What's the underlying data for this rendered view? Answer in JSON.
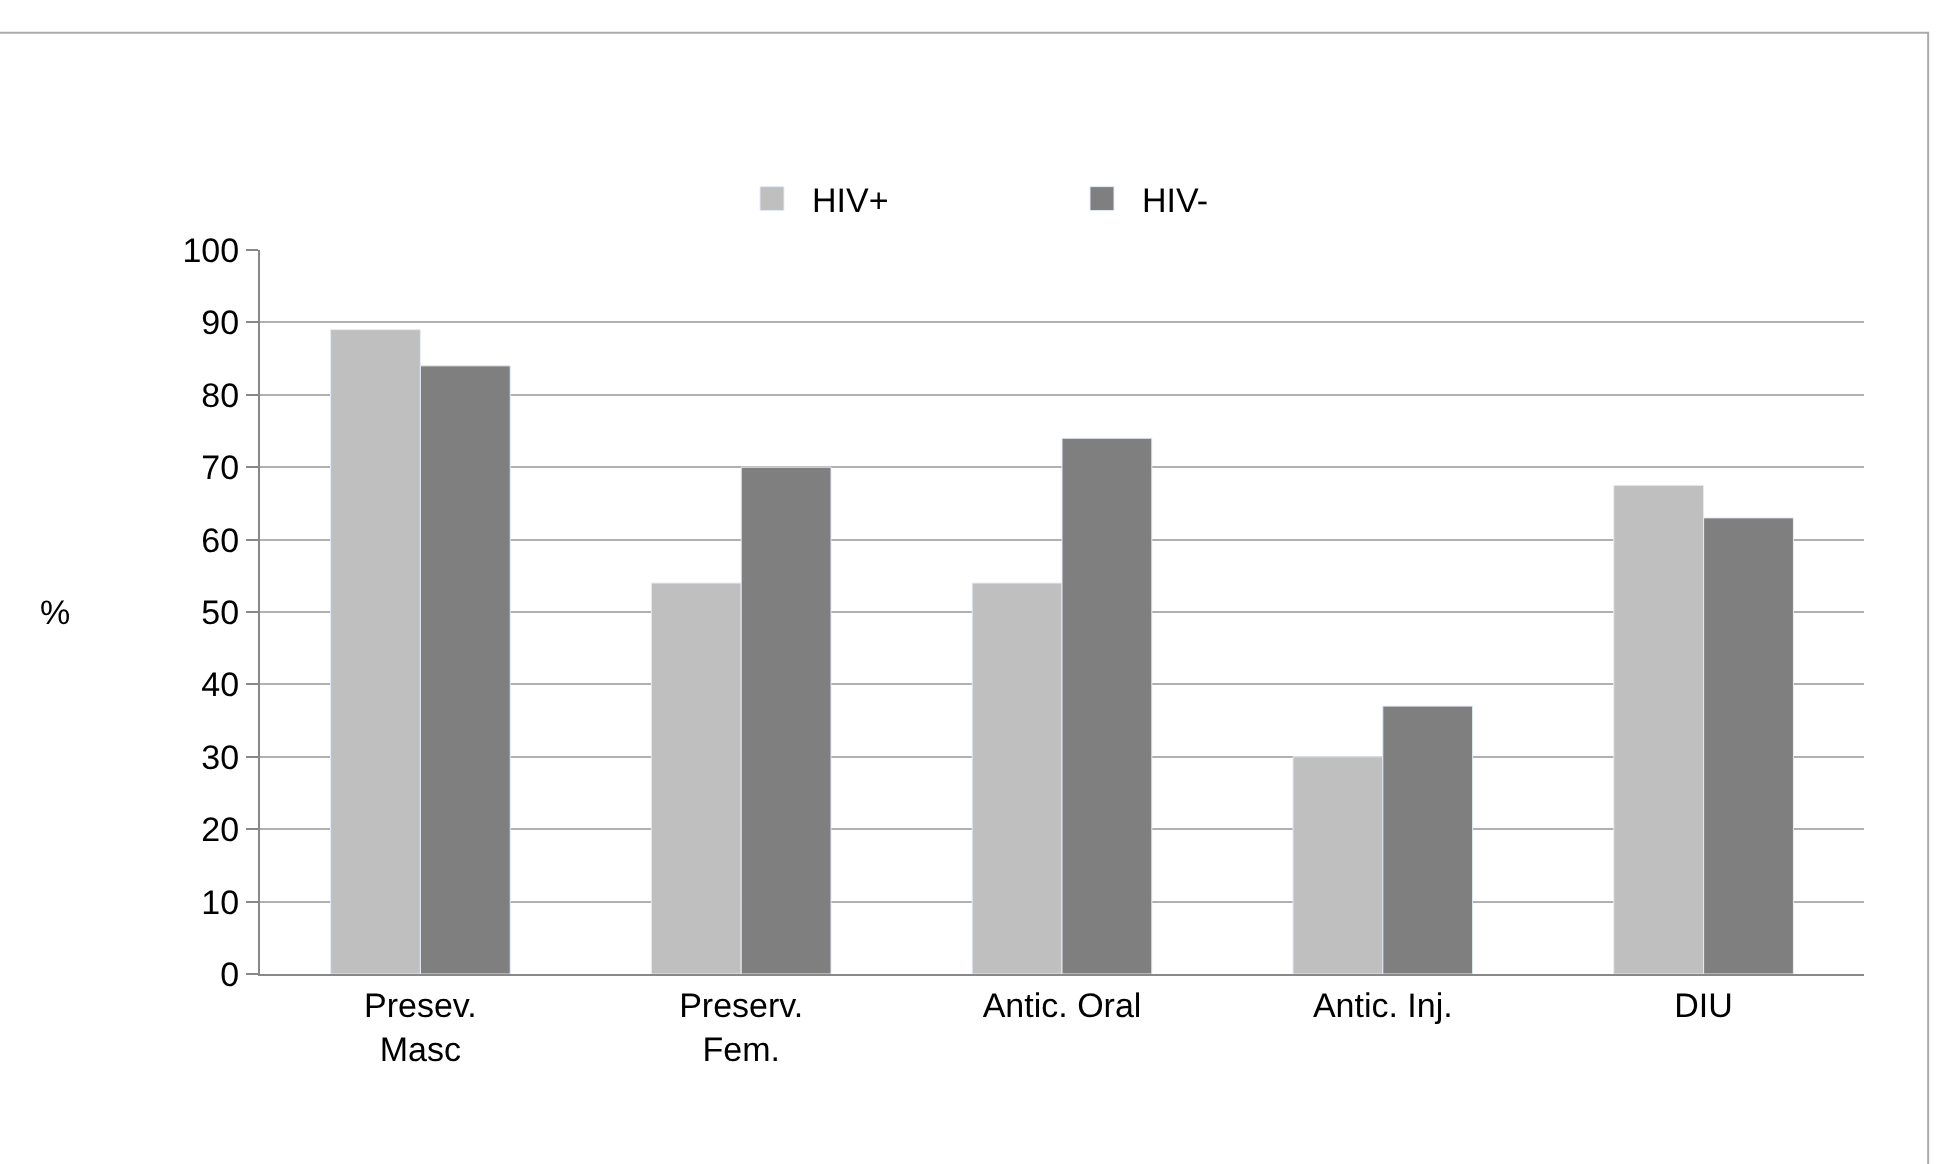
{
  "chart_data": {
    "type": "bar",
    "ylabel": "%",
    "categories": [
      "Presev.\nMasc",
      "Preserv.\nFem.",
      "Antic. Oral",
      "Antic. Inj.",
      "DIU"
    ],
    "series": [
      {
        "name": "HIV+",
        "color": "#bfbfbf",
        "values": [
          89,
          54,
          54,
          30,
          67.5
        ]
      },
      {
        "name": "HIV-",
        "color": "#7f7f7f",
        "values": [
          84,
          70,
          74,
          37,
          63
        ]
      }
    ],
    "ylim": [
      0,
      100
    ],
    "yticks": [
      0,
      10,
      20,
      30,
      40,
      50,
      60,
      70,
      80,
      90,
      100
    ],
    "grid": "y",
    "legend": "top"
  }
}
